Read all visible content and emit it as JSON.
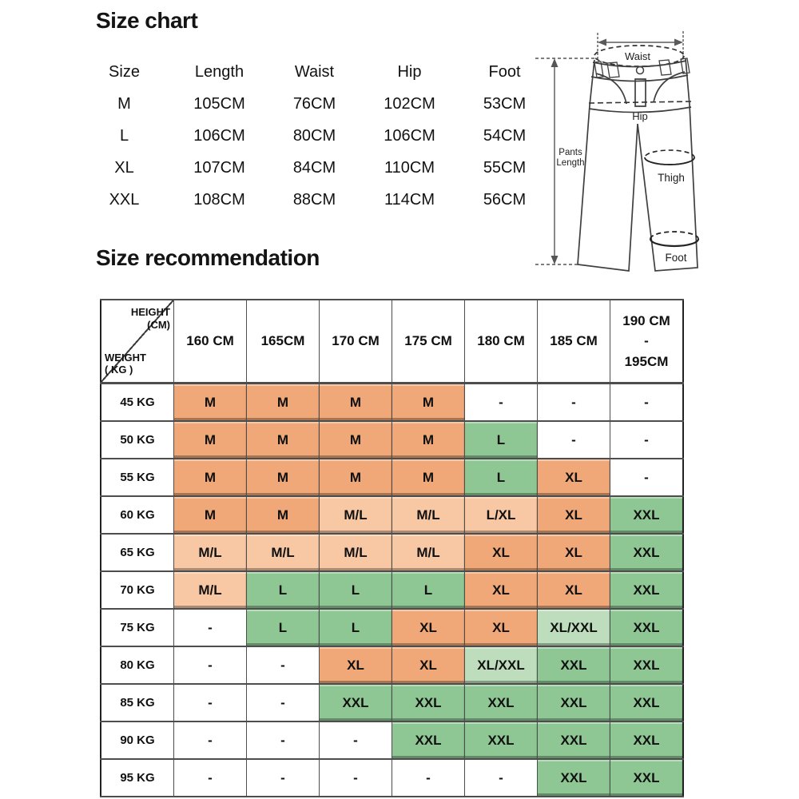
{
  "size_chart": {
    "title": "Size chart",
    "columns": [
      "Size",
      "Length",
      "Waist",
      "Hip",
      "Foot"
    ],
    "rows": [
      [
        "M",
        "105CM",
        "76CM",
        "102CM",
        "53CM"
      ],
      [
        "L",
        "106CM",
        "80CM",
        "106CM",
        "54CM"
      ],
      [
        "XL",
        "107CM",
        "84CM",
        "110CM",
        "55CM"
      ],
      [
        "XXL",
        "108CM",
        "88CM",
        "114CM",
        "56CM"
      ]
    ]
  },
  "pants_diagram": {
    "waist_label": "Waist",
    "hip_label": "Hip",
    "thigh_label": "Thigh",
    "foot_label": "Foot",
    "length_label_line1": "Pants",
    "length_label_line2": "Length"
  },
  "size_recommendation": {
    "title": "Size recommendation",
    "corner": {
      "height_label": "HEIGHT",
      "height_unit": "(CM)",
      "weight_label": "WEIGHT",
      "weight_unit": "( KG )"
    },
    "height_columns": [
      "160 CM",
      "165CM",
      "170 CM",
      "175 CM",
      "180 CM",
      "185 CM",
      "190 CM\n-\n195CM"
    ],
    "rows": [
      {
        "weight": "45 KG",
        "cells": [
          {
            "t": "M",
            "c": "orange"
          },
          {
            "t": "M",
            "c": "orange"
          },
          {
            "t": "M",
            "c": "orange"
          },
          {
            "t": "M",
            "c": "orange"
          },
          {
            "t": "-",
            "c": "white"
          },
          {
            "t": "-",
            "c": "white"
          },
          {
            "t": "-",
            "c": "white"
          }
        ]
      },
      {
        "weight": "50 KG",
        "cells": [
          {
            "t": "M",
            "c": "orange"
          },
          {
            "t": "M",
            "c": "orange"
          },
          {
            "t": "M",
            "c": "orange"
          },
          {
            "t": "M",
            "c": "orange"
          },
          {
            "t": "L",
            "c": "green"
          },
          {
            "t": "-",
            "c": "white"
          },
          {
            "t": "-",
            "c": "white"
          }
        ]
      },
      {
        "weight": "55 KG",
        "cells": [
          {
            "t": "M",
            "c": "orange"
          },
          {
            "t": "M",
            "c": "orange"
          },
          {
            "t": "M",
            "c": "orange"
          },
          {
            "t": "M",
            "c": "orange"
          },
          {
            "t": "L",
            "c": "green"
          },
          {
            "t": "XL",
            "c": "orange"
          },
          {
            "t": "-",
            "c": "white"
          }
        ]
      },
      {
        "weight": "60 KG",
        "cells": [
          {
            "t": "M",
            "c": "orange"
          },
          {
            "t": "M",
            "c": "orange"
          },
          {
            "t": "M/L",
            "c": "light-orange"
          },
          {
            "t": "M/L",
            "c": "light-orange"
          },
          {
            "t": "L/XL",
            "c": "light-orange"
          },
          {
            "t": "XL",
            "c": "orange"
          },
          {
            "t": "XXL",
            "c": "green"
          }
        ]
      },
      {
        "weight": "65 KG",
        "cells": [
          {
            "t": "M/L",
            "c": "light-orange"
          },
          {
            "t": "M/L",
            "c": "light-orange"
          },
          {
            "t": "M/L",
            "c": "light-orange"
          },
          {
            "t": "M/L",
            "c": "light-orange"
          },
          {
            "t": "XL",
            "c": "orange"
          },
          {
            "t": "XL",
            "c": "orange"
          },
          {
            "t": "XXL",
            "c": "green"
          }
        ]
      },
      {
        "weight": "70 KG",
        "cells": [
          {
            "t": "M/L",
            "c": "light-orange"
          },
          {
            "t": "L",
            "c": "green"
          },
          {
            "t": "L",
            "c": "green"
          },
          {
            "t": "L",
            "c": "green"
          },
          {
            "t": "XL",
            "c": "orange"
          },
          {
            "t": "XL",
            "c": "orange"
          },
          {
            "t": "XXL",
            "c": "green"
          }
        ]
      },
      {
        "weight": "75 KG",
        "cells": [
          {
            "t": "-",
            "c": "white"
          },
          {
            "t": "L",
            "c": "green"
          },
          {
            "t": "L",
            "c": "green"
          },
          {
            "t": "XL",
            "c": "orange"
          },
          {
            "t": "XL",
            "c": "orange"
          },
          {
            "t": "XL/XXL",
            "c": "light-green"
          },
          {
            "t": "XXL",
            "c": "green"
          }
        ]
      },
      {
        "weight": "80 KG",
        "cells": [
          {
            "t": "-",
            "c": "white"
          },
          {
            "t": "-",
            "c": "white"
          },
          {
            "t": "XL",
            "c": "orange"
          },
          {
            "t": "XL",
            "c": "orange"
          },
          {
            "t": "XL/XXL",
            "c": "light-green"
          },
          {
            "t": "XXL",
            "c": "green"
          },
          {
            "t": "XXL",
            "c": "green"
          }
        ]
      },
      {
        "weight": "85 KG",
        "cells": [
          {
            "t": "-",
            "c": "white"
          },
          {
            "t": "-",
            "c": "white"
          },
          {
            "t": "XXL",
            "c": "green"
          },
          {
            "t": "XXL",
            "c": "green"
          },
          {
            "t": "XXL",
            "c": "green"
          },
          {
            "t": "XXL",
            "c": "green"
          },
          {
            "t": "XXL",
            "c": "green"
          }
        ]
      },
      {
        "weight": "90 KG",
        "cells": [
          {
            "t": "-",
            "c": "white"
          },
          {
            "t": "-",
            "c": "white"
          },
          {
            "t": "-",
            "c": "white"
          },
          {
            "t": "XXL",
            "c": "green"
          },
          {
            "t": "XXL",
            "c": "green"
          },
          {
            "t": "XXL",
            "c": "green"
          },
          {
            "t": "XXL",
            "c": "green"
          }
        ]
      },
      {
        "weight": "95 KG",
        "cells": [
          {
            "t": "-",
            "c": "white"
          },
          {
            "t": "-",
            "c": "white"
          },
          {
            "t": "-",
            "c": "white"
          },
          {
            "t": "-",
            "c": "white"
          },
          {
            "t": "-",
            "c": "white"
          },
          {
            "t": "XXL",
            "c": "green"
          },
          {
            "t": "XXL",
            "c": "green"
          }
        ]
      }
    ],
    "legend_colors": {
      "orange": "#F1A878",
      "light_orange": "#F8C8A4",
      "green": "#8FC794",
      "light_green": "#BEDDBC"
    }
  }
}
